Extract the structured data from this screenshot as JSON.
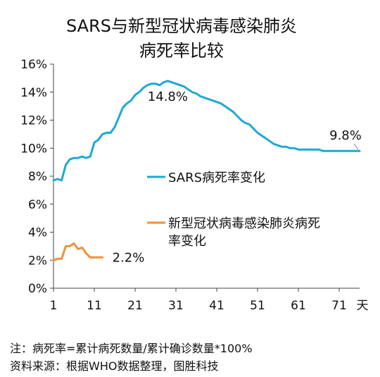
{
  "chart_data": {
    "type": "line",
    "title": [
      "SARS与新型冠状病毒感染肺炎",
      "病死率比较"
    ],
    "x_unit": "天",
    "x_ticks": [
      "1",
      "11",
      "21",
      "31",
      "41",
      "51",
      "61",
      "71"
    ],
    "y_ticks": [
      "0%",
      "2%",
      "4%",
      "6%",
      "8%",
      "10%",
      "12%",
      "14%",
      "16%"
    ],
    "xlim": [
      1,
      76
    ],
    "ylim": [
      0,
      16
    ],
    "grid": false,
    "series": [
      {
        "name": "SARS病死率变化",
        "color": "#1fa8d8",
        "x": [
          1,
          2,
          3,
          4,
          5,
          6,
          7,
          8,
          9,
          10,
          11,
          12,
          13,
          14,
          15,
          16,
          17,
          18,
          19,
          20,
          21,
          22,
          23,
          24,
          25,
          26,
          27,
          28,
          29,
          30,
          31,
          32,
          33,
          34,
          35,
          36,
          37,
          38,
          39,
          40,
          41,
          42,
          43,
          44,
          45,
          46,
          47,
          48,
          49,
          50,
          51,
          52,
          53,
          54,
          55,
          56,
          57,
          58,
          59,
          60,
          61,
          62,
          63,
          64,
          65,
          66,
          67,
          68,
          69,
          70,
          71,
          72,
          73,
          74,
          75,
          76
        ],
        "values": [
          7.7,
          7.8,
          7.7,
          8.8,
          9.2,
          9.3,
          9.3,
          9.4,
          9.3,
          9.4,
          10.4,
          10.6,
          11.0,
          11.1,
          11.1,
          11.5,
          12.2,
          12.9,
          13.2,
          13.4,
          13.8,
          14.0,
          14.3,
          14.5,
          14.6,
          14.6,
          14.5,
          14.7,
          14.8,
          14.7,
          14.6,
          14.5,
          14.4,
          14.2,
          14.0,
          13.9,
          13.7,
          13.6,
          13.5,
          13.4,
          13.3,
          13.2,
          13.0,
          12.8,
          12.6,
          12.3,
          12.0,
          11.8,
          11.7,
          11.4,
          11.1,
          10.9,
          10.7,
          10.5,
          10.3,
          10.2,
          10.1,
          10.1,
          10.0,
          10.0,
          9.9,
          9.9,
          9.9,
          9.9,
          9.9,
          9.9,
          9.8,
          9.8,
          9.8,
          9.8,
          9.8,
          9.8,
          9.8,
          9.8,
          9.8,
          9.8
        ]
      },
      {
        "name": "新型冠状病毒感染肺炎病死率变化",
        "legend_lines": [
          "新型冠状病毒感染肺炎病死",
          "率变化"
        ],
        "color": "#f0903a",
        "x": [
          1,
          2,
          3,
          4,
          5,
          6,
          7,
          8,
          9,
          10,
          11,
          12,
          13
        ],
        "values": [
          2.0,
          2.1,
          2.1,
          3.0,
          3.0,
          3.2,
          2.8,
          2.9,
          2.5,
          2.2,
          2.2,
          2.2,
          2.2
        ]
      }
    ],
    "annotations": [
      {
        "text": "14.8%",
        "x": 29,
        "y": 14.8
      },
      {
        "text": "9.8%",
        "x": 76,
        "y": 9.8
      },
      {
        "text": "2.2%",
        "x": 13,
        "y": 2.2
      }
    ]
  },
  "notes": [
    "注：病死率=累计病死数量/累计确诊数量*100%",
    "资料来源：根据WHO数据整理，图胜科技"
  ]
}
